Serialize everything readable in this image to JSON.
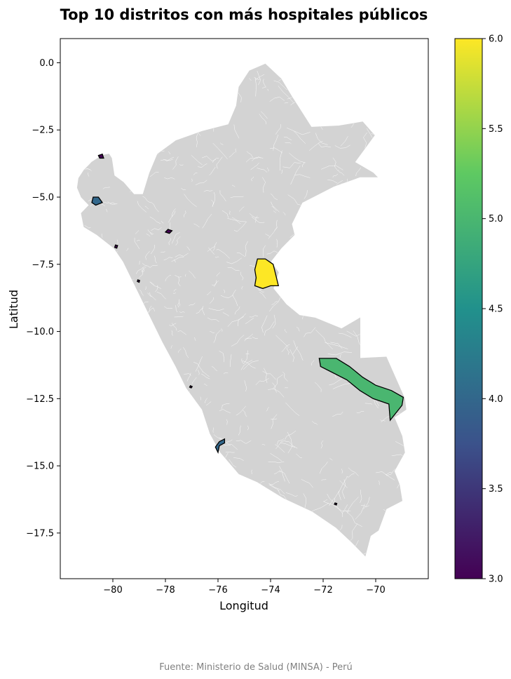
{
  "title": "Top 10 distritos con más hospitales públicos",
  "source": "Fuente: Ministerio de Salud (MINSA) - Perú",
  "colors": {
    "background_country": "#d3d3d3",
    "district_lines": "#ffffff",
    "highlight_outline": "#000000",
    "source_text": "#808080",
    "colormap": [
      "#440154",
      "#3b528b",
      "#21918c",
      "#5ec962",
      "#fde725"
    ]
  },
  "chart_data": {
    "type": "choropleth-map",
    "xlabel": "Longitud",
    "ylabel": "Latitud",
    "xlim": [
      -82.0,
      -68.0
    ],
    "ylim": [
      -19.2,
      0.9
    ],
    "x_ticks": [
      {
        "value": -80,
        "label": "−80"
      },
      {
        "value": -78,
        "label": "−78"
      },
      {
        "value": -76,
        "label": "−76"
      },
      {
        "value": -74,
        "label": "−74"
      },
      {
        "value": -72,
        "label": "−72"
      },
      {
        "value": -70,
        "label": "−70"
      }
    ],
    "y_ticks": [
      {
        "value": 0.0,
        "label": "0.0"
      },
      {
        "value": -2.5,
        "label": "−2.5"
      },
      {
        "value": -5.0,
        "label": "−5.0"
      },
      {
        "value": -7.5,
        "label": "−7.5"
      },
      {
        "value": -10.0,
        "label": "−10.0"
      },
      {
        "value": -12.5,
        "label": "−12.5"
      },
      {
        "value": -15.0,
        "label": "−15.0"
      },
      {
        "value": -17.5,
        "label": "−17.5"
      }
    ],
    "colorbar": {
      "colormap": "viridis",
      "range": [
        3.0,
        6.0
      ],
      "ticks": [
        {
          "value": 3.0,
          "label": "3.0"
        },
        {
          "value": 3.5,
          "label": "3.5"
        },
        {
          "value": 4.0,
          "label": "4.0"
        },
        {
          "value": 4.5,
          "label": "4.5"
        },
        {
          "value": 5.0,
          "label": "5.0"
        },
        {
          "value": 5.5,
          "label": "5.5"
        },
        {
          "value": 6.0,
          "label": "6.0"
        }
      ]
    },
    "highlighted_districts": [
      {
        "value": 6,
        "points": [
          [
            -74.0,
            -8.3
          ],
          [
            -73.7,
            -8.3
          ],
          [
            -73.8,
            -7.9
          ],
          [
            -73.9,
            -7.5
          ],
          [
            -74.2,
            -7.3
          ],
          [
            -74.5,
            -7.3
          ],
          [
            -74.6,
            -7.7
          ],
          [
            -74.55,
            -8.0
          ],
          [
            -74.6,
            -8.3
          ],
          [
            -74.3,
            -8.4
          ]
        ]
      },
      {
        "value": 5,
        "points": [
          [
            -72.15,
            -11.0
          ],
          [
            -71.5,
            -11.0
          ],
          [
            -71.0,
            -11.3
          ],
          [
            -70.5,
            -11.7
          ],
          [
            -70.0,
            -12.0
          ],
          [
            -69.4,
            -12.2
          ],
          [
            -68.95,
            -12.45
          ],
          [
            -69.0,
            -12.75
          ],
          [
            -69.45,
            -13.3
          ],
          [
            -69.5,
            -12.7
          ],
          [
            -70.1,
            -12.5
          ],
          [
            -70.6,
            -12.2
          ],
          [
            -71.1,
            -11.8
          ],
          [
            -71.7,
            -11.5
          ],
          [
            -72.1,
            -11.3
          ]
        ]
      },
      {
        "value": 4,
        "points": [
          [
            -75.75,
            -14.0
          ],
          [
            -75.95,
            -14.1
          ],
          [
            -76.1,
            -14.3
          ],
          [
            -76.0,
            -14.5
          ],
          [
            -75.95,
            -14.25
          ],
          [
            -75.75,
            -14.15
          ]
        ]
      },
      {
        "value": 4,
        "points": [
          [
            -80.75,
            -5.0
          ],
          [
            -80.55,
            -5.0
          ],
          [
            -80.4,
            -5.2
          ],
          [
            -80.65,
            -5.3
          ],
          [
            -80.8,
            -5.2
          ]
        ]
      },
      {
        "value": 3,
        "points": [
          [
            -80.5,
            -3.55
          ],
          [
            -80.35,
            -3.55
          ],
          [
            -80.4,
            -3.4
          ],
          [
            -80.55,
            -3.45
          ]
        ]
      },
      {
        "value": 3,
        "points": [
          [
            -77.9,
            -6.2
          ],
          [
            -77.75,
            -6.25
          ],
          [
            -77.85,
            -6.35
          ],
          [
            -78.0,
            -6.3
          ]
        ]
      },
      {
        "value": 3,
        "points": [
          [
            -79.9,
            -6.78
          ],
          [
            -79.82,
            -6.8
          ],
          [
            -79.85,
            -6.9
          ],
          [
            -79.93,
            -6.87
          ]
        ]
      },
      {
        "value": 3,
        "points": [
          [
            -79.05,
            -8.08
          ],
          [
            -78.98,
            -8.1
          ],
          [
            -79.0,
            -8.17
          ],
          [
            -79.07,
            -8.14
          ]
        ]
      },
      {
        "value": 3,
        "points": [
          [
            -77.05,
            -12.02
          ],
          [
            -76.98,
            -12.05
          ],
          [
            -77.02,
            -12.1
          ],
          [
            -77.08,
            -12.07
          ]
        ]
      },
      {
        "value": 3,
        "points": [
          [
            -71.55,
            -16.38
          ],
          [
            -71.48,
            -16.4
          ],
          [
            -71.5,
            -16.46
          ],
          [
            -71.57,
            -16.43
          ]
        ]
      }
    ]
  }
}
